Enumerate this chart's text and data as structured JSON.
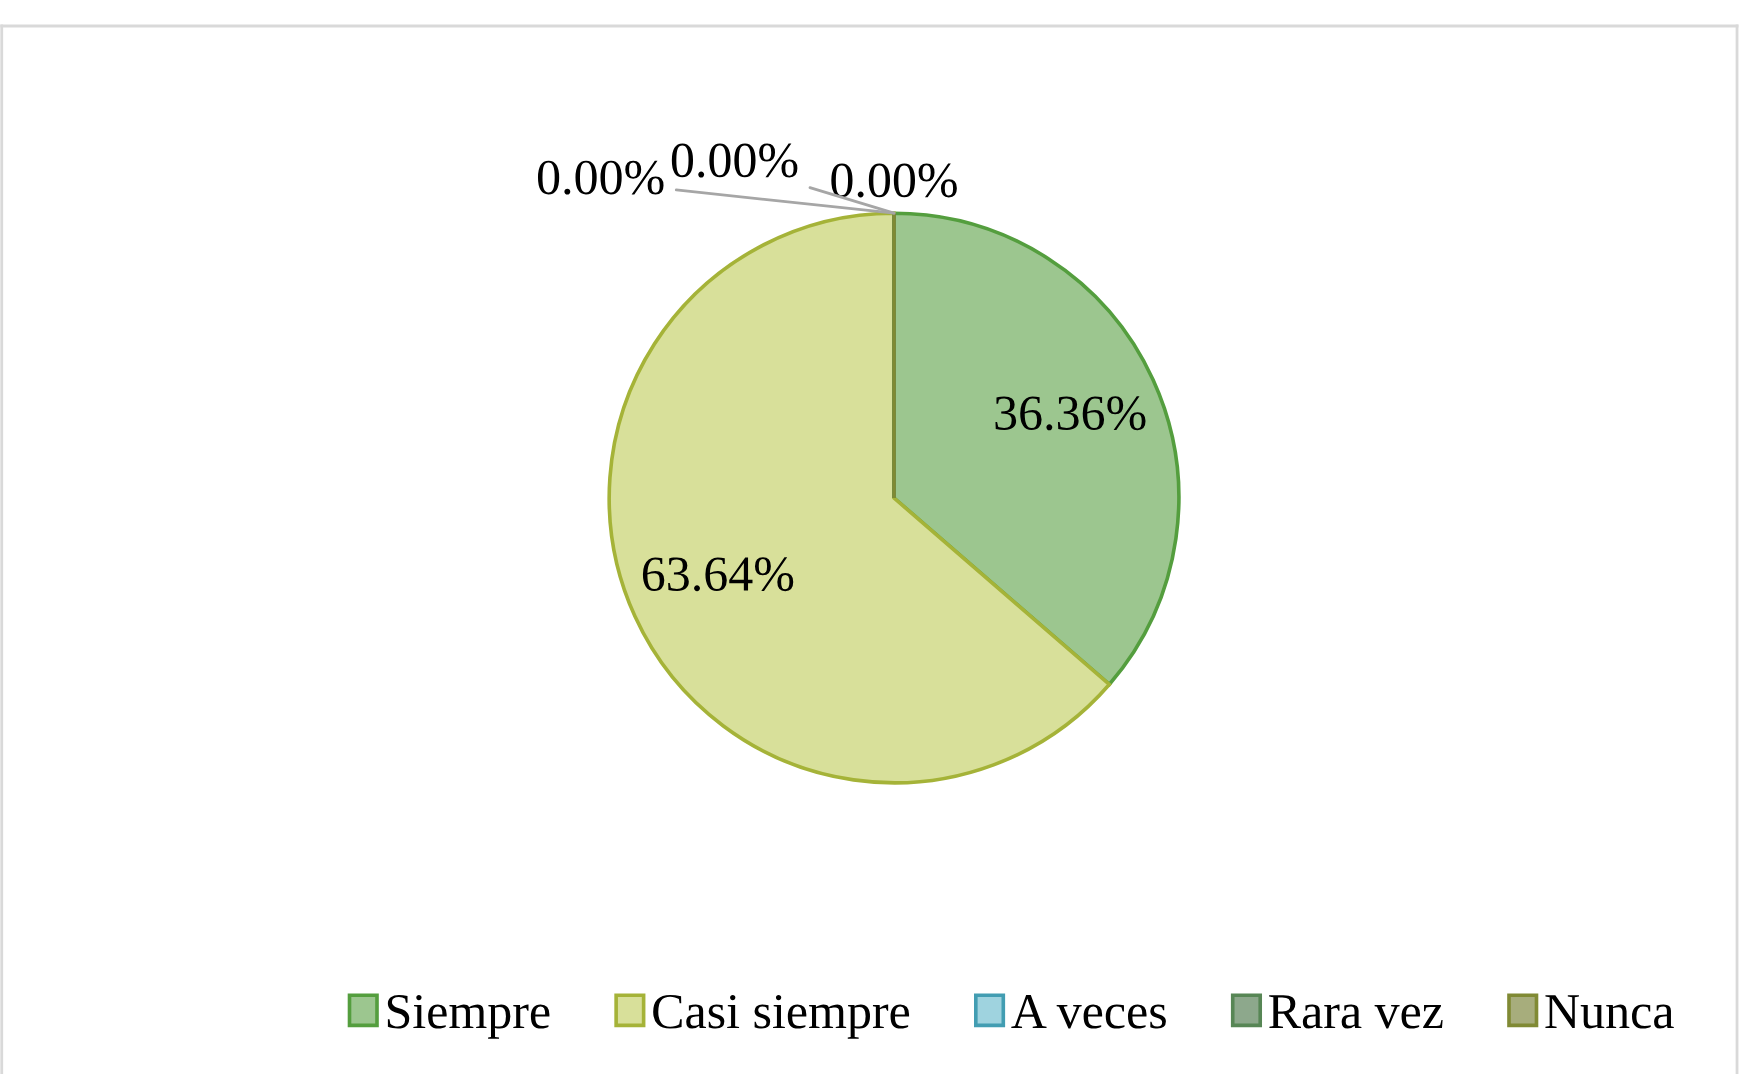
{
  "chart_data": {
    "type": "pie",
    "categories": [
      "Siempre",
      "Casi siempre",
      "A veces",
      "Rara vez",
      "Nunca"
    ],
    "values": [
      36.36,
      63.64,
      0,
      0,
      0
    ],
    "value_labels": [
      "36.36%",
      "63.64%",
      "0.00%",
      "0.00%",
      "0.00%"
    ],
    "colors": [
      "#9cc68f",
      "#d8e09a",
      "#9fd3df",
      "#8da88c",
      "#a7ad7c"
    ],
    "legend": "bottom"
  }
}
